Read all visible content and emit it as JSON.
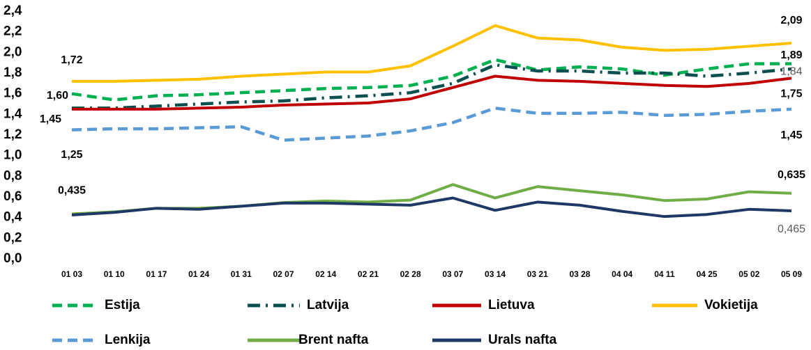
{
  "chart_data": {
    "type": "line",
    "categories": [
      "01 03",
      "01 10",
      "01 17",
      "01 24",
      "01 31",
      "02 07",
      "02 14",
      "02 21",
      "02 28",
      "03 07",
      "03 14",
      "03 21",
      "03 28",
      "04 04",
      "04 11",
      "04 25",
      "05 02",
      "05 09"
    ],
    "ylim": [
      0,
      2.4
    ],
    "yticks": [
      {
        "value": 0,
        "label": "0,0"
      },
      {
        "value": 0.2,
        "label": "0,2"
      },
      {
        "value": 0.4,
        "label": "0,4"
      },
      {
        "value": 0.6,
        "label": "0,6"
      },
      {
        "value": 0.8,
        "label": "0,8"
      },
      {
        "value": 1.0,
        "label": "1,0"
      },
      {
        "value": 1.2,
        "label": "1,2"
      },
      {
        "value": 1.4,
        "label": "1,4"
      },
      {
        "value": 1.6,
        "label": "1,6"
      },
      {
        "value": 1.8,
        "label": "1,8"
      },
      {
        "value": 2.0,
        "label": "2,0"
      },
      {
        "value": 2.2,
        "label": "2,2"
      },
      {
        "value": 2.4,
        "label": "2,4"
      }
    ],
    "grid": false,
    "series": [
      {
        "name": "Estija",
        "color": "#00b050",
        "dash": "dash",
        "values": [
          1.6,
          1.54,
          1.58,
          1.59,
          1.61,
          1.63,
          1.65,
          1.66,
          1.68,
          1.77,
          1.93,
          1.83,
          1.86,
          1.84,
          1.78,
          1.84,
          1.89,
          1.89
        ],
        "value_labels": [
          "1,60",
          null,
          null,
          null,
          null,
          null,
          null,
          null,
          null,
          null,
          null,
          null,
          null,
          null,
          null,
          null,
          null,
          "1,89"
        ]
      },
      {
        "name": "Latvija",
        "color": "#0b4f4f",
        "dash": "dashdot",
        "values": [
          1.46,
          1.46,
          1.48,
          1.5,
          1.52,
          1.53,
          1.56,
          1.58,
          1.61,
          1.7,
          1.88,
          1.82,
          1.82,
          1.8,
          1.8,
          1.77,
          1.8,
          1.84
        ],
        "value_labels": [
          null,
          null,
          null,
          null,
          null,
          null,
          null,
          null,
          null,
          null,
          null,
          null,
          null,
          null,
          null,
          null,
          null,
          "1,84"
        ]
      },
      {
        "name": "Lietuva",
        "color": "#c00000",
        "dash": "solid",
        "values": [
          1.45,
          1.45,
          1.45,
          1.46,
          1.47,
          1.49,
          1.5,
          1.51,
          1.55,
          1.66,
          1.77,
          1.73,
          1.72,
          1.7,
          1.68,
          1.67,
          1.7,
          1.75
        ],
        "value_labels": [
          "1,45",
          null,
          null,
          null,
          null,
          null,
          null,
          null,
          null,
          null,
          null,
          null,
          null,
          null,
          null,
          null,
          null,
          "1,75"
        ]
      },
      {
        "name": "Vokietija",
        "color": "#ffc000",
        "dash": "solid",
        "values": [
          1.72,
          1.72,
          1.73,
          1.74,
          1.77,
          1.79,
          1.81,
          1.81,
          1.87,
          2.06,
          2.26,
          2.14,
          2.12,
          2.05,
          2.02,
          2.03,
          2.06,
          2.09
        ],
        "value_labels": [
          "1,72",
          null,
          null,
          null,
          null,
          null,
          null,
          null,
          null,
          null,
          null,
          null,
          null,
          null,
          null,
          null,
          null,
          "2,09"
        ]
      },
      {
        "name": "Lenkija",
        "color": "#5b9bd5",
        "dash": "dash",
        "values": [
          1.25,
          1.26,
          1.26,
          1.27,
          1.28,
          1.15,
          1.17,
          1.19,
          1.24,
          1.32,
          1.46,
          1.41,
          1.41,
          1.42,
          1.39,
          1.4,
          1.43,
          1.45
        ],
        "value_labels": [
          "1,25",
          null,
          null,
          null,
          null,
          null,
          null,
          null,
          null,
          null,
          null,
          null,
          null,
          null,
          null,
          null,
          null,
          "1,45"
        ]
      },
      {
        "name": "Brent nafta",
        "color": "#70ad47",
        "dash": "solid",
        "values": [
          0.435,
          0.455,
          0.49,
          0.49,
          0.51,
          0.545,
          0.56,
          0.55,
          0.57,
          0.72,
          0.59,
          0.7,
          0.66,
          0.62,
          0.565,
          0.58,
          0.65,
          0.635
        ],
        "value_labels": [
          "0,435",
          null,
          null,
          null,
          null,
          null,
          null,
          null,
          null,
          null,
          null,
          null,
          null,
          null,
          null,
          null,
          null,
          "0,635"
        ]
      },
      {
        "name": "Urals nafta",
        "color": "#203864",
        "dash": "solid",
        "values": [
          0.425,
          0.45,
          0.49,
          0.48,
          0.51,
          0.54,
          0.54,
          0.53,
          0.52,
          0.59,
          0.47,
          0.55,
          0.52,
          0.46,
          0.41,
          0.43,
          0.48,
          0.465
        ],
        "value_labels": [
          null,
          null,
          null,
          null,
          null,
          null,
          null,
          null,
          null,
          null,
          null,
          null,
          null,
          null,
          null,
          null,
          null,
          "0,465"
        ]
      }
    ]
  }
}
